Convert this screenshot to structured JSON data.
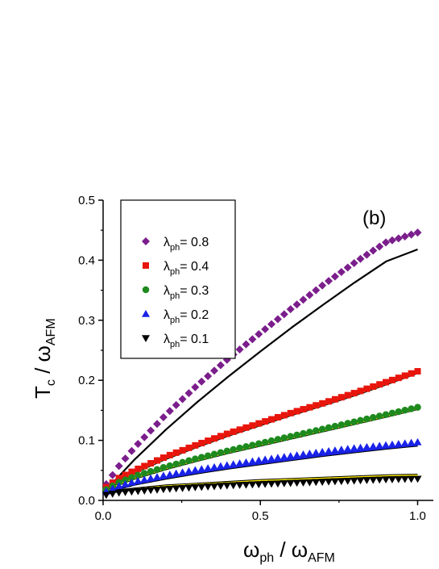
{
  "chart_data": {
    "type": "scatter",
    "panel_label": "(b)",
    "xlabel": {
      "main": "ω",
      "sub": "ph",
      "sep": " / ω",
      "sub2": "AFM"
    },
    "ylabel": {
      "main": "T",
      "sub": "c",
      "sep": " / ω",
      "sub2": "AFM"
    },
    "xlim": [
      0,
      1.05
    ],
    "ylim": [
      0,
      0.5
    ],
    "xticks": [
      0.0,
      0.5,
      1.0
    ],
    "xtick_labels": [
      "0.0",
      "0.5",
      "1.0"
    ],
    "yticks": [
      0.0,
      0.1,
      0.2,
      0.3,
      0.4,
      0.5
    ],
    "ytick_labels": [
      "0.0",
      "0.1",
      "0.2",
      "0.3",
      "0.4",
      "0.5"
    ],
    "grid": false,
    "legend_position": "top-left",
    "series": [
      {
        "name_main": "λ",
        "name_sub": "ph",
        "name_tail": "= 0.8",
        "marker": "diamond",
        "color": "#7B1E8C",
        "x": [
          0.01,
          0.05,
          0.1,
          0.2,
          0.3,
          0.4,
          0.5,
          0.6,
          0.7,
          0.8,
          0.9,
          1.0
        ],
        "y": [
          0.027,
          0.057,
          0.088,
          0.143,
          0.192,
          0.237,
          0.279,
          0.32,
          0.359,
          0.396,
          0.43,
          0.446
        ],
        "fit_line": {
          "color": "#000000",
          "x": [
            0.01,
            0.05,
            0.1,
            0.2,
            0.3,
            0.4,
            0.5,
            0.6,
            0.7,
            0.8,
            0.9,
            1.0
          ],
          "y": [
            0.017,
            0.04,
            0.068,
            0.118,
            0.164,
            0.207,
            0.248,
            0.288,
            0.326,
            0.363,
            0.398,
            0.418
          ]
        }
      },
      {
        "name_main": "λ",
        "name_sub": "ph",
        "name_tail": "= 0.4",
        "marker": "square",
        "color": "#E8150C",
        "x": [
          0.01,
          0.05,
          0.1,
          0.2,
          0.3,
          0.4,
          0.5,
          0.6,
          0.7,
          0.8,
          0.9,
          1.0
        ],
        "y": [
          0.022,
          0.037,
          0.05,
          0.073,
          0.093,
          0.112,
          0.129,
          0.146,
          0.162,
          0.179,
          0.197,
          0.215
        ],
        "fit_line": {
          "color": "#000000",
          "highlight": "#FFEE00",
          "x": [
            0.01,
            0.05,
            0.1,
            0.2,
            0.3,
            0.4,
            0.5,
            0.6,
            0.7,
            0.8,
            0.9,
            1.0
          ],
          "y": [
            0.016,
            0.033,
            0.047,
            0.07,
            0.09,
            0.109,
            0.126,
            0.143,
            0.159,
            0.176,
            0.194,
            0.213
          ]
        }
      },
      {
        "name_main": "λ",
        "name_sub": "ph",
        "name_tail": "= 0.3",
        "marker": "circle",
        "color": "#1E8A1E",
        "x": [
          0.01,
          0.05,
          0.1,
          0.2,
          0.3,
          0.4,
          0.5,
          0.6,
          0.7,
          0.8,
          0.9,
          1.0
        ],
        "y": [
          0.018,
          0.03,
          0.04,
          0.056,
          0.07,
          0.083,
          0.095,
          0.107,
          0.119,
          0.131,
          0.143,
          0.155
        ],
        "fit_line": {
          "color": "#000000",
          "highlight": "#FFEE00",
          "x": [
            0.01,
            0.05,
            0.1,
            0.2,
            0.3,
            0.4,
            0.5,
            0.6,
            0.7,
            0.8,
            0.9,
            1.0
          ],
          "y": [
            0.014,
            0.027,
            0.037,
            0.053,
            0.067,
            0.08,
            0.092,
            0.104,
            0.116,
            0.128,
            0.14,
            0.153
          ]
        }
      },
      {
        "name_main": "λ",
        "name_sub": "ph",
        "name_tail": "= 0.2",
        "marker": "triangle-up",
        "color": "#1A23E8",
        "x": [
          0.01,
          0.05,
          0.1,
          0.2,
          0.3,
          0.4,
          0.5,
          0.6,
          0.7,
          0.8,
          0.9,
          1.0
        ],
        "y": [
          0.015,
          0.024,
          0.031,
          0.042,
          0.051,
          0.059,
          0.067,
          0.074,
          0.081,
          0.087,
          0.092,
          0.097
        ],
        "fit_line": {
          "color": "#000000",
          "highlight": "#1A23E8",
          "x": [
            0.01,
            0.05,
            0.1,
            0.2,
            0.3,
            0.4,
            0.5,
            0.6,
            0.7,
            0.8,
            0.9,
            1.0
          ],
          "y": [
            0.012,
            0.02,
            0.027,
            0.037,
            0.046,
            0.054,
            0.061,
            0.068,
            0.075,
            0.081,
            0.087,
            0.092
          ]
        }
      },
      {
        "name_main": "λ",
        "name_sub": "ph",
        "name_tail": "= 0.1",
        "marker": "triangle-down",
        "color": "#000000",
        "x": [
          0.01,
          0.05,
          0.1,
          0.2,
          0.3,
          0.4,
          0.5,
          0.6,
          0.7,
          0.8,
          0.9,
          1.0
        ],
        "y": [
          0.009,
          0.013,
          0.015,
          0.019,
          0.022,
          0.025,
          0.027,
          0.029,
          0.031,
          0.033,
          0.035,
          0.036
        ],
        "fit_line": {
          "color": "#000000",
          "highlight": "#FFEE00",
          "x": [
            0.01,
            0.05,
            0.1,
            0.2,
            0.3,
            0.4,
            0.5,
            0.6,
            0.7,
            0.8,
            0.9,
            1.0
          ],
          "y": [
            0.012,
            0.016,
            0.019,
            0.024,
            0.027,
            0.03,
            0.033,
            0.035,
            0.037,
            0.039,
            0.041,
            0.042
          ]
        }
      }
    ]
  }
}
